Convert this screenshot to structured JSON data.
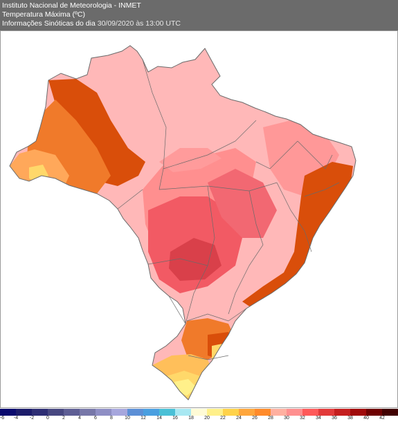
{
  "header": {
    "institute": "Instituto Nacional de Meteorologia - INMET",
    "variable": "Temperatura Máxima (ºC)",
    "info_prefix": "Informações Sinóticas do dia",
    "info_date": "30/09/2020 às 13:00 UTC"
  },
  "legend": {
    "colors": [
      "#0a0a6e",
      "#1c1c6a",
      "#2e2e74",
      "#474780",
      "#5e5e94",
      "#7777a8",
      "#8e8ec4",
      "#a6a6dc",
      "#5c8fd6",
      "#4a9fe0",
      "#4ac0d6",
      "#a8e8f2",
      "#fffbd6",
      "#fff08a",
      "#ffd24a",
      "#ffa63c",
      "#ff8a2a",
      "#ffb0a0",
      "#ff8f8f",
      "#ff5a5a",
      "#e23a3a",
      "#c41e1e",
      "#a00a0a",
      "#6e0000",
      "#400000"
    ],
    "ticks": [
      "-6",
      "-4",
      "-2",
      "0",
      "2",
      "4",
      "6",
      "8",
      "10",
      "12",
      "14",
      "16",
      "18",
      "20",
      "22",
      "24",
      "26",
      "28",
      "30",
      "32",
      "34",
      "36",
      "38",
      "40",
      "42"
    ]
  },
  "map_colors": {
    "t30": "#ffb8b8",
    "t32": "#ff8f8f",
    "t34": "#f25a64",
    "t36": "#d9404a",
    "t28": "#f07a2a",
    "t29": "#d94e0a",
    "t24": "#ffbf5a",
    "t22": "#ffd86a",
    "t20": "#fff08a",
    "border": "#6a6a6a"
  }
}
